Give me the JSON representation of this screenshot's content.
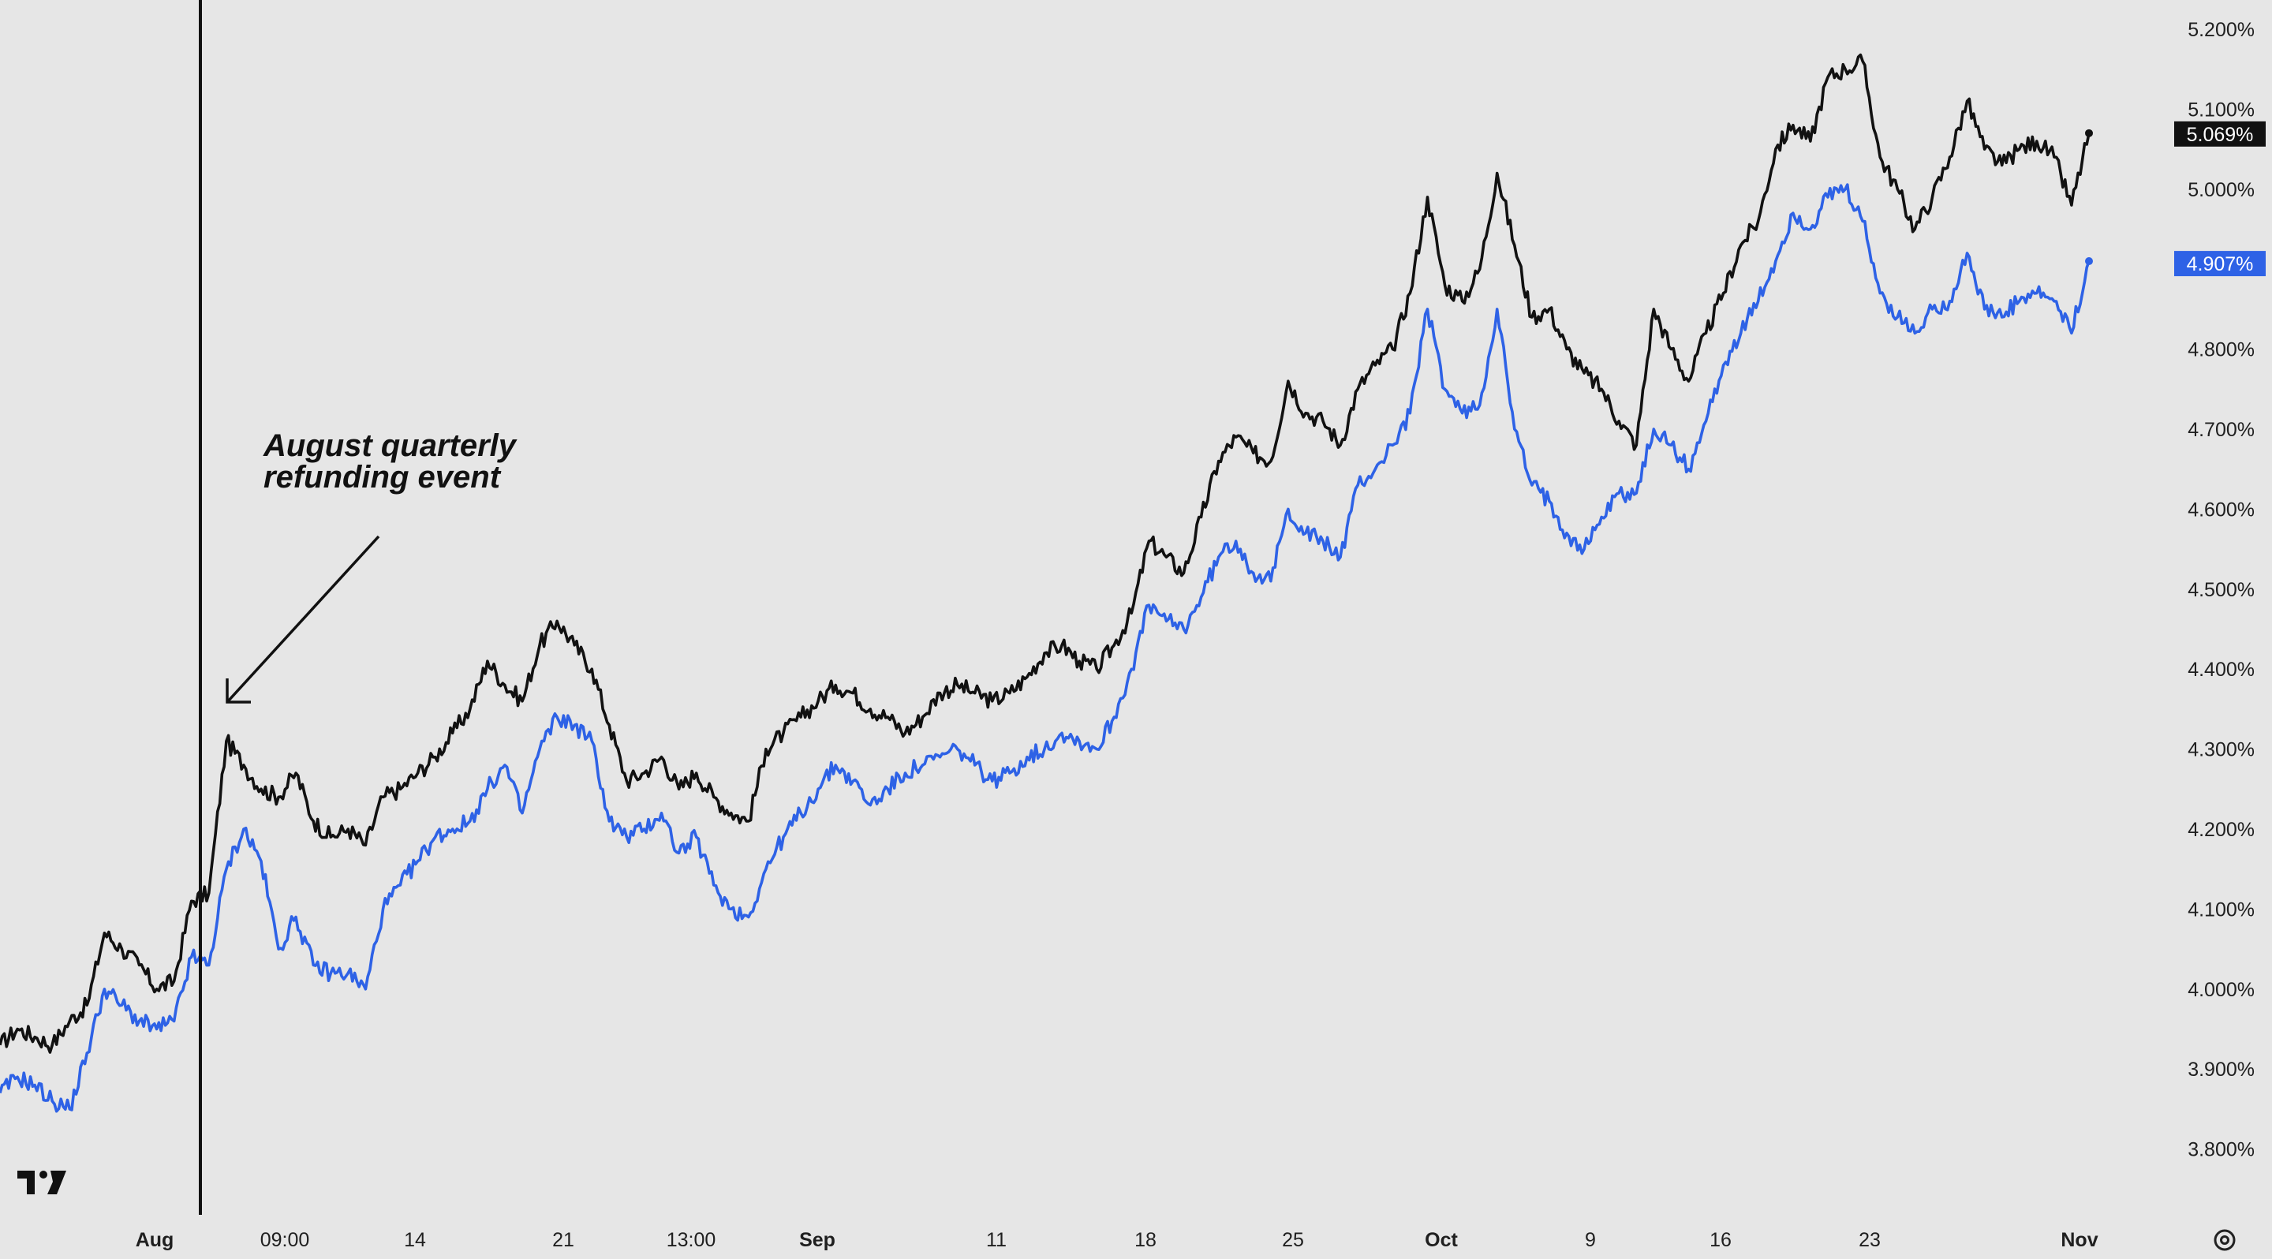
{
  "chart_data": {
    "type": "line",
    "y_axis_position": "right",
    "ylim": [
      3.75,
      5.23
    ],
    "y_ticks": [
      "5.200%",
      "5.100%",
      "5.000%",
      "4.900%",
      "4.800%",
      "4.700%",
      "4.600%",
      "4.500%",
      "4.400%",
      "4.300%",
      "4.200%",
      "4.100%",
      "4.000%",
      "3.900%",
      "3.800%"
    ],
    "x_ticks": [
      {
        "label": "Aug",
        "major": true
      },
      {
        "label": "09:00",
        "major": false
      },
      {
        "label": "14",
        "major": false
      },
      {
        "label": "21",
        "major": false
      },
      {
        "label": "13:00",
        "major": false
      },
      {
        "label": "Sep",
        "major": true
      },
      {
        "label": "11",
        "major": false
      },
      {
        "label": "18",
        "major": false
      },
      {
        "label": "25",
        "major": false
      },
      {
        "label": "Oct",
        "major": true
      },
      {
        "label": "9",
        "major": false
      },
      {
        "label": "16",
        "major": false
      },
      {
        "label": "23",
        "major": false
      },
      {
        "label": "Nov",
        "major": true
      }
    ],
    "series": [
      {
        "color": "#111111",
        "last_value_label": "5.069%",
        "values": [
          3.93,
          3.95,
          3.94,
          3.93,
          3.96,
          3.98,
          4.07,
          4.05,
          4.03,
          4.0,
          4.01,
          4.11,
          4.12,
          4.31,
          4.28,
          4.25,
          4.24,
          4.27,
          4.21,
          4.19,
          4.2,
          4.18,
          4.24,
          4.25,
          4.27,
          4.29,
          4.32,
          4.35,
          4.41,
          4.38,
          4.36,
          4.43,
          4.46,
          4.43,
          4.4,
          4.33,
          4.26,
          4.27,
          4.29,
          4.25,
          4.27,
          4.24,
          4.22,
          4.21,
          4.3,
          4.32,
          4.34,
          4.36,
          4.38,
          4.37,
          4.35,
          4.34,
          4.32,
          4.34,
          4.37,
          4.38,
          4.37,
          4.36,
          4.37,
          4.39,
          4.42,
          4.43,
          4.41,
          4.4,
          4.43,
          4.47,
          4.56,
          4.54,
          4.52,
          4.59,
          4.66,
          4.69,
          4.67,
          4.66,
          4.76,
          4.72,
          4.71,
          4.68,
          4.75,
          4.78,
          4.8,
          4.87,
          4.99,
          4.88,
          4.86,
          4.9,
          5.02,
          4.93,
          4.84,
          4.85,
          4.8,
          4.77,
          4.75,
          4.71,
          4.68,
          4.85,
          4.8,
          4.76,
          4.82,
          4.87,
          4.93,
          4.96,
          5.05,
          5.08,
          5.06,
          5.14,
          5.15,
          5.16,
          5.04,
          5.0,
          4.95,
          4.99,
          5.04,
          5.11,
          5.05,
          5.03,
          5.05,
          5.06,
          5.04,
          4.98,
          5.07
        ]
      },
      {
        "color": "#2e62e6",
        "last_value_label": "4.907%",
        "values": [
          3.87,
          3.89,
          3.88,
          3.86,
          3.85,
          3.92,
          4.0,
          3.98,
          3.96,
          3.95,
          3.96,
          4.04,
          4.03,
          4.15,
          4.2,
          4.16,
          4.05,
          4.09,
          4.03,
          4.02,
          4.02,
          4.0,
          4.1,
          4.13,
          4.16,
          4.19,
          4.2,
          4.21,
          4.25,
          4.28,
          4.22,
          4.3,
          4.34,
          4.33,
          4.31,
          4.21,
          4.19,
          4.2,
          4.22,
          4.17,
          4.19,
          4.13,
          4.1,
          4.09,
          4.15,
          4.19,
          4.22,
          4.25,
          4.28,
          4.26,
          4.23,
          4.25,
          4.27,
          4.28,
          4.29,
          4.3,
          4.28,
          4.26,
          4.27,
          4.29,
          4.3,
          4.32,
          4.31,
          4.3,
          4.34,
          4.4,
          4.48,
          4.46,
          4.45,
          4.49,
          4.54,
          4.56,
          4.52,
          4.51,
          4.6,
          4.57,
          4.56,
          4.54,
          4.63,
          4.65,
          4.68,
          4.72,
          4.85,
          4.75,
          4.72,
          4.73,
          4.85,
          4.7,
          4.63,
          4.61,
          4.57,
          4.55,
          4.59,
          4.62,
          4.62,
          4.7,
          4.68,
          4.65,
          4.71,
          4.78,
          4.82,
          4.86,
          4.91,
          4.97,
          4.95,
          4.99,
          5.0,
          4.96,
          4.87,
          4.84,
          4.82,
          4.85,
          4.86,
          4.92,
          4.85,
          4.84,
          4.86,
          4.87,
          4.86,
          4.82,
          4.91
        ]
      }
    ],
    "annotation": {
      "line1": "August quarterly",
      "line2": "refunding event"
    }
  }
}
